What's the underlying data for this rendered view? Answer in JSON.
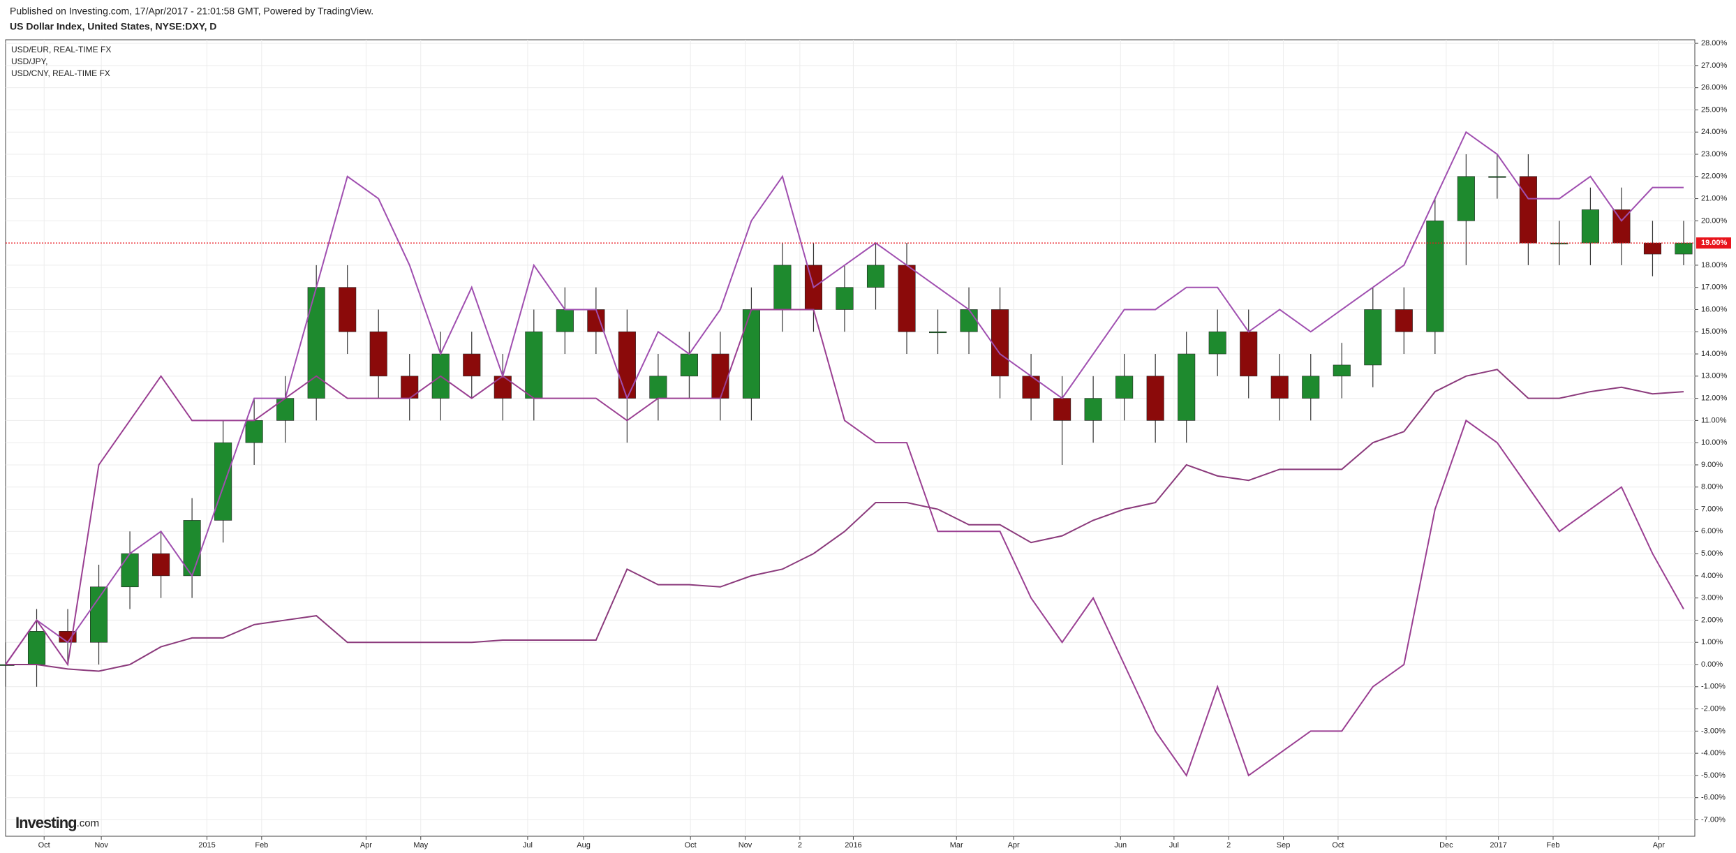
{
  "chart_data": {
    "type": "candlestick",
    "subtitle": "Published on Investing.com, 17/Apr/2017 - 21:01:58 GMT, Powered by TradingView.",
    "title": "US Dollar Index, United States, NYSE:DXY, D",
    "x": [
      0,
      2.5,
      5,
      7.5,
      10,
      12.5,
      15,
      17.5,
      20,
      22.5,
      25,
      27.5,
      30,
      32.5,
      35,
      37.5,
      40,
      42.5,
      45,
      47.5,
      50,
      52.5,
      55,
      57.5,
      60,
      62.5,
      65,
      67.5,
      70,
      72.5,
      75,
      77.5,
      80,
      82.5,
      85,
      87.5,
      90,
      92.5,
      95,
      97.5,
      100,
      102.5,
      105,
      107.5,
      110,
      112.5,
      115,
      117.5,
      120,
      122.5,
      125,
      127.5,
      130,
      132.5,
      135
    ],
    "open": [
      0,
      0,
      1.5,
      1,
      3.5,
      5,
      4,
      6.5,
      10,
      11,
      12,
      17,
      15,
      13,
      12,
      14,
      13,
      12,
      15,
      16,
      15,
      12,
      13,
      14,
      12,
      16,
      18,
      16,
      17,
      18,
      15,
      15,
      16,
      13,
      12,
      11,
      12,
      13,
      11,
      14,
      15,
      13,
      12,
      13,
      13.5,
      16,
      15,
      20,
      22,
      22,
      19,
      19,
      20.5,
      19,
      18.5
    ],
    "high": [
      1,
      2.5,
      2.5,
      4.5,
      6,
      6,
      7.5,
      11,
      12,
      13,
      18,
      18,
      16,
      14,
      15,
      15,
      14,
      16,
      17,
      17,
      16,
      14,
      15,
      15,
      17,
      19,
      19,
      18,
      19,
      19,
      16,
      17,
      17,
      14,
      13,
      13,
      14,
      14,
      15,
      16,
      16,
      14,
      14,
      14.5,
      17,
      17,
      21,
      23,
      23,
      23,
      20,
      21.5,
      21.5,
      20,
      20
    ],
    "low": [
      -1,
      -1,
      0,
      0,
      2.5,
      3,
      3,
      5.5,
      9,
      10,
      11,
      14,
      12,
      11,
      11,
      12,
      11,
      11,
      14,
      14,
      10,
      11,
      12,
      11,
      11,
      15,
      15,
      15,
      16,
      14,
      14,
      14,
      12,
      11,
      9,
      10,
      11,
      10,
      10,
      13,
      12,
      11,
      11,
      12,
      12.5,
      14,
      14,
      18,
      21,
      18,
      18,
      18,
      18,
      17.5,
      18
    ],
    "close": [
      0,
      1.5,
      1,
      3.5,
      5,
      4,
      6.5,
      10,
      11,
      12,
      17,
      15,
      13,
      12,
      14,
      13,
      12,
      15,
      16,
      15,
      12,
      13,
      14,
      12,
      16,
      18,
      16,
      17,
      18,
      15,
      15,
      16,
      13,
      12,
      11,
      12,
      13,
      11,
      14,
      15,
      13,
      12,
      13,
      13.5,
      16,
      15,
      20,
      22,
      22,
      19,
      19,
      20.5,
      19,
      18.5,
      19
    ],
    "up_color": "#1e8a2e",
    "down_color": "#8b0a0a",
    "series": [
      {
        "name": "USD/EUR, REAL-TIME FX",
        "color": "#a04fb0",
        "values": [
          0,
          2,
          1,
          3,
          5,
          6,
          4,
          8,
          12,
          12,
          17,
          22,
          21,
          18,
          14,
          17,
          13,
          18,
          16,
          16,
          12,
          15,
          14,
          16,
          20,
          22,
          17,
          18,
          19,
          18,
          17,
          16,
          14,
          13,
          12,
          14,
          16,
          16,
          17,
          17,
          15,
          16,
          15,
          16,
          17,
          18,
          21,
          24,
          23,
          21,
          21,
          22,
          20,
          21.5,
          21.5
        ]
      },
      {
        "name": "USD/JPY,",
        "color": "#9a3f92",
        "values": [
          0,
          2,
          0,
          9,
          11,
          13,
          11,
          11,
          11,
          12,
          13,
          12,
          12,
          12,
          13,
          12,
          13,
          12,
          12,
          12,
          11,
          12,
          12,
          12,
          16,
          16,
          16,
          11,
          10,
          10,
          6,
          6,
          6,
          3,
          1,
          3,
          0,
          -3,
          -5,
          -1,
          -5,
          -4,
          -3,
          -3,
          -1,
          0,
          7,
          11,
          10,
          8,
          6,
          7,
          8,
          5,
          2.5
        ]
      },
      {
        "name": "USD/CNY, REAL-TIME FX",
        "color": "#8b3a7c",
        "values": [
          0,
          0,
          -0.2,
          -0.3,
          0,
          0.8,
          1.2,
          1.2,
          1.8,
          2,
          2.2,
          1,
          1,
          1,
          1,
          1,
          1.1,
          1.1,
          1.1,
          1.1,
          4.3,
          3.6,
          3.6,
          3.5,
          4,
          4.3,
          5,
          6,
          7.3,
          7.3,
          7,
          6.3,
          6.3,
          5.5,
          5.8,
          6.5,
          7,
          7.3,
          9,
          8.5,
          8.3,
          8.8,
          8.8,
          8.8,
          10,
          10.5,
          12.3,
          13,
          13.3,
          12,
          12,
          12.3,
          12.5,
          12.2,
          12.3
        ]
      }
    ],
    "last_price": {
      "value": 19,
      "label": "19.00%"
    },
    "xlim": [
      0,
      135.9
    ],
    "xticks": [
      {
        "value": 3.1,
        "label": "Oct"
      },
      {
        "value": 7.7,
        "label": "Nov"
      },
      {
        "value": 16.2,
        "label": "2015"
      },
      {
        "value": 20.6,
        "label": "Feb"
      },
      {
        "value": 29.0,
        "label": "Apr"
      },
      {
        "value": 33.4,
        "label": "May"
      },
      {
        "value": 42.0,
        "label": "Jul"
      },
      {
        "value": 46.5,
        "label": "Aug"
      },
      {
        "value": 55.1,
        "label": "Oct"
      },
      {
        "value": 59.5,
        "label": "Nov"
      },
      {
        "value": 63.9,
        "label": "2"
      },
      {
        "value": 68.2,
        "label": "2016"
      },
      {
        "value": 76.5,
        "label": "Mar"
      },
      {
        "value": 81.1,
        "label": "Apr"
      },
      {
        "value": 89.7,
        "label": "Jun"
      },
      {
        "value": 94.0,
        "label": "Jul"
      },
      {
        "value": 98.4,
        "label": "2"
      },
      {
        "value": 102.8,
        "label": "Sep"
      },
      {
        "value": 107.2,
        "label": "Oct"
      },
      {
        "value": 115.9,
        "label": "Dec"
      },
      {
        "value": 120.1,
        "label": "2017"
      },
      {
        "value": 124.5,
        "label": "Feb"
      },
      {
        "value": 133.0,
        "label": "Apr"
      }
    ],
    "ylim": [
      -7.74,
      28.16
    ],
    "yticks": [
      {
        "value": 28,
        "label": "28.00%"
      },
      {
        "value": 27,
        "label": "27.00%"
      },
      {
        "value": 26,
        "label": "26.00%"
      },
      {
        "value": 25,
        "label": "25.00%"
      },
      {
        "value": 24,
        "label": "24.00%"
      },
      {
        "value": 23,
        "label": "23.00%"
      },
      {
        "value": 22,
        "label": "22.00%"
      },
      {
        "value": 21,
        "label": "21.00%"
      },
      {
        "value": 20,
        "label": "20.00%"
      },
      {
        "value": 18,
        "label": "18.00%"
      },
      {
        "value": 17,
        "label": "17.00%"
      },
      {
        "value": 16,
        "label": "16.00%"
      },
      {
        "value": 15,
        "label": "15.00%"
      },
      {
        "value": 14,
        "label": "14.00%"
      },
      {
        "value": 13,
        "label": "13.00%"
      },
      {
        "value": 12,
        "label": "12.00%"
      },
      {
        "value": 11,
        "label": "11.00%"
      },
      {
        "value": 10,
        "label": "10.00%"
      },
      {
        "value": 9,
        "label": "9.00%"
      },
      {
        "value": 8,
        "label": "8.00%"
      },
      {
        "value": 7,
        "label": "7.00%"
      },
      {
        "value": 6,
        "label": "6.00%"
      },
      {
        "value": 5,
        "label": "5.00%"
      },
      {
        "value": 4,
        "label": "4.00%"
      },
      {
        "value": 3,
        "label": "3.00%"
      },
      {
        "value": 2,
        "label": "2.00%"
      },
      {
        "value": 1,
        "label": "1.00%"
      },
      {
        "value": 0,
        "label": "0.00%"
      },
      {
        "value": -1,
        "label": "-1.00%"
      },
      {
        "value": -2,
        "label": "-2.00%"
      },
      {
        "value": -3,
        "label": "-3.00%"
      },
      {
        "value": -4,
        "label": "-4.00%"
      },
      {
        "value": -5,
        "label": "-5.00%"
      },
      {
        "value": -6,
        "label": "-6.00%"
      },
      {
        "value": -7,
        "label": "-7.00%"
      }
    ],
    "grid": true
  },
  "branding": {
    "name": "Investing",
    "suffix": ".com"
  }
}
